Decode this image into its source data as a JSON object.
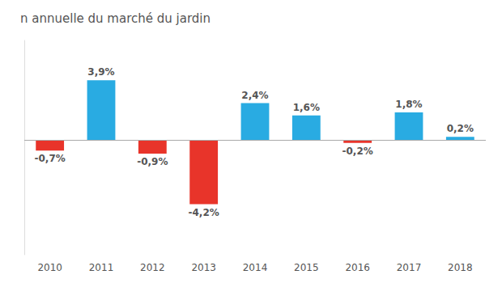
{
  "chart_data": {
    "type": "bar",
    "title": "n annuelle du marché du jardin",
    "categories": [
      "2010",
      "2011",
      "2012",
      "2013",
      "2014",
      "2015",
      "2016",
      "2017",
      "2018"
    ],
    "values": [
      -0.7,
      3.9,
      -0.9,
      -4.2,
      2.4,
      1.6,
      -0.2,
      1.8,
      0.2
    ],
    "value_labels": [
      "-0,7%",
      "3,9%",
      "-0,9%",
      "-4,2%",
      "2,4%",
      "1,6%",
      "-0,2%",
      "1,8%",
      "0,2%"
    ],
    "colors": [
      "#E8342A",
      "#29ABE2",
      "#E8342A",
      "#E8342A",
      "#29ABE2",
      "#29ABE2",
      "#E8342A",
      "#29ABE2",
      "#29ABE2"
    ],
    "ylim": [
      -7.5,
      6.5
    ],
    "data_labels": true,
    "tick_labels": "x",
    "grid": false
  }
}
